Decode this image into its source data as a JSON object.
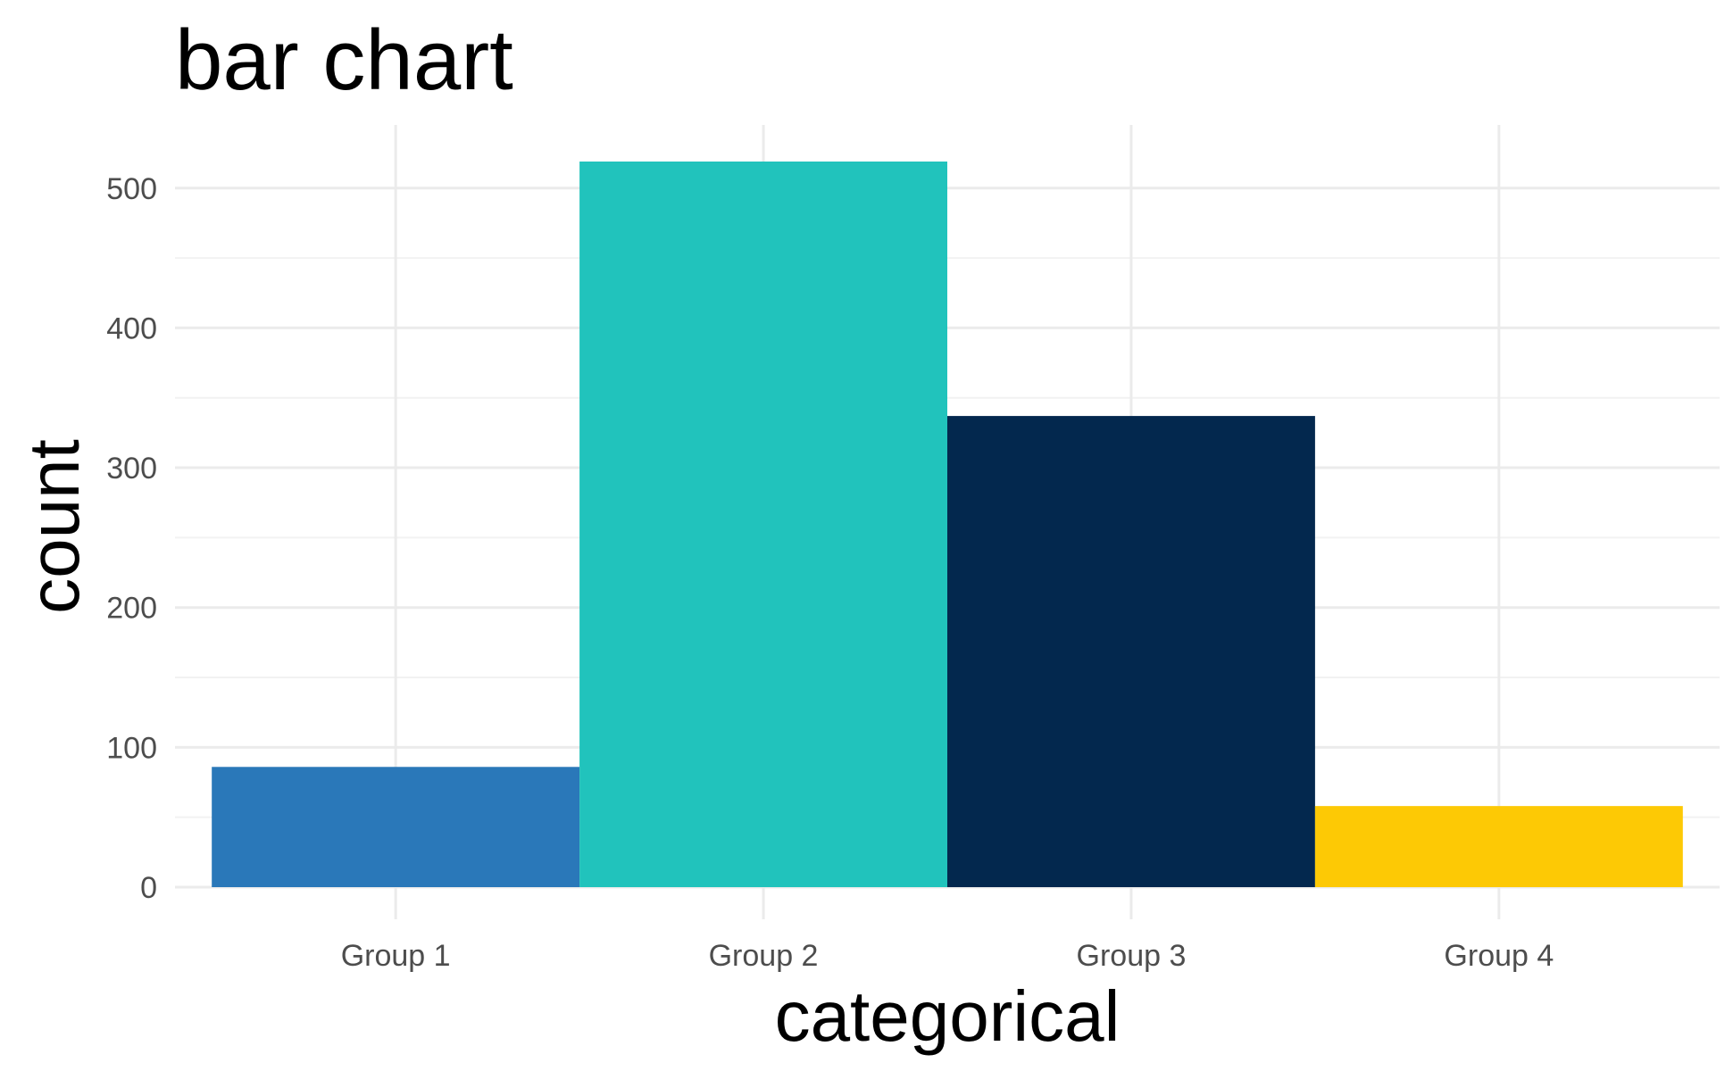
{
  "chart_data": {
    "type": "bar",
    "title": "bar chart",
    "xlabel": "categorical",
    "ylabel": "count",
    "categories": [
      "Group 1",
      "Group 2",
      "Group 3",
      "Group 4"
    ],
    "values": [
      86,
      519,
      337,
      58
    ],
    "colors": [
      "#2a78b9",
      "#21c3bc",
      "#03284e",
      "#fdc905"
    ],
    "ylim": [
      0,
      545
    ],
    "yticks": [
      0,
      100,
      200,
      300,
      400,
      500
    ],
    "grid": true,
    "legend": "none"
  }
}
